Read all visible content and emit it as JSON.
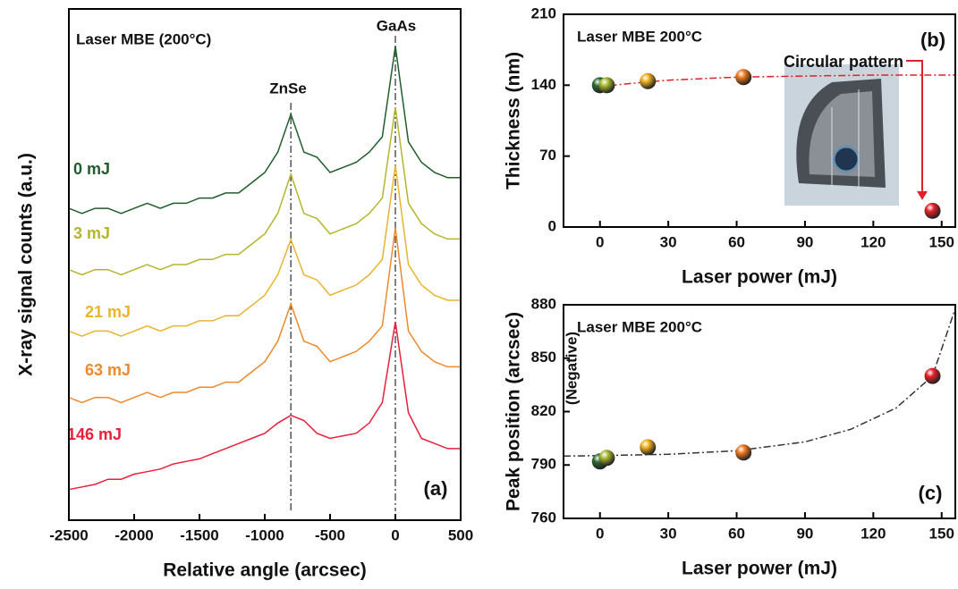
{
  "chart_data": [
    {
      "type": "line",
      "x_label": "Relative angle (arcsec)",
      "y_label": "X-ray signal counts (a.u.)",
      "note": "Laser MBE (200°C)",
      "panel_label": "(a)",
      "peak_labels": [
        "ZnSe",
        "GaAs"
      ],
      "reference_lines": [
        -800,
        0
      ],
      "xlim": [
        -2500,
        500
      ],
      "ylim": [
        0,
        100
      ],
      "xticks": [
        -2500,
        -2000,
        -1500,
        -1000,
        -500,
        0,
        500
      ],
      "x": [
        -2500,
        -2400,
        -2300,
        -2200,
        -2100,
        -2000,
        -1900,
        -1800,
        -1700,
        -1600,
        -1500,
        -1400,
        -1300,
        -1200,
        -1100,
        -1000,
        -900,
        -800,
        -700,
        -600,
        -500,
        -400,
        -300,
        -200,
        -100,
        0,
        100,
        200,
        300,
        400,
        500
      ],
      "series": [
        {
          "name": "0 mJ",
          "color": "#1f5e2c",
          "values": [
            61,
            60,
            61,
            61,
            60,
            61,
            62,
            61,
            62,
            62,
            63,
            63,
            64,
            64,
            66,
            68,
            72,
            79.4,
            72,
            71,
            68,
            69,
            70,
            72,
            75,
            92.7,
            74,
            70,
            68,
            67,
            67
          ]
        },
        {
          "name": "3 mJ",
          "color": "#b5b52e",
          "values": [
            49,
            48,
            49,
            49,
            48,
            49,
            50,
            49,
            50,
            50,
            51,
            51,
            52,
            52,
            54,
            56,
            60,
            67.7,
            60,
            59,
            56,
            57,
            58,
            60,
            63,
            80.8,
            62,
            58,
            56,
            55,
            55
          ]
        },
        {
          "name": "21 mJ",
          "color": "#e9b42e",
          "values": [
            37,
            36,
            37,
            37,
            36,
            37,
            38,
            37,
            38,
            38,
            39,
            39,
            40,
            40,
            42,
            44,
            48,
            54.9,
            48,
            47,
            44,
            45,
            46,
            48,
            51,
            69.4,
            50,
            46,
            44,
            43,
            43
          ]
        },
        {
          "name": "63 mJ",
          "color": "#ec8a2c",
          "values": [
            24,
            23,
            24,
            24,
            23,
            24,
            25,
            24,
            25,
            25,
            26,
            26,
            27,
            27,
            29,
            31,
            35,
            42.3,
            35,
            34,
            31,
            32,
            33,
            35,
            38,
            57.2,
            37,
            33,
            31,
            30,
            30
          ]
        },
        {
          "name": "146 mJ",
          "color": "#e8203a",
          "values": [
            6,
            6.5,
            7,
            8,
            8,
            9,
            9.5,
            10,
            11,
            11.5,
            12,
            13,
            14,
            15,
            16,
            17,
            19,
            20.5,
            19.5,
            17,
            16,
            16.5,
            17,
            19,
            23,
            38.8,
            21,
            16,
            15,
            14,
            14
          ]
        }
      ]
    },
    {
      "type": "scatter",
      "x_label": "Laser power (mJ)",
      "y_label": "Thickness (nm)",
      "note": "Laser MBE 200°C",
      "panel_label": "(b)",
      "annotation": "Circular pattern",
      "xlim": [
        -16,
        156
      ],
      "ylim": [
        0,
        210
      ],
      "xticks": [
        0,
        30,
        60,
        90,
        120,
        150
      ],
      "yticks": [
        0,
        70,
        140,
        210
      ],
      "x": [
        0,
        3,
        21,
        63,
        146
      ],
      "values": [
        140,
        140,
        144,
        148,
        16
      ],
      "colors": [
        "#2a6a34",
        "#a8b830",
        "#f0b020",
        "#f07a20",
        "#e8202a"
      ],
      "fit": {
        "color": "#e0202a",
        "x": [
          -2,
          10,
          30,
          60,
          90,
          120,
          156
        ],
        "values": [
          138,
          141,
          145,
          148,
          149,
          150,
          150
        ]
      }
    },
    {
      "type": "scatter",
      "x_label": "Laser power (mJ)",
      "y_label": "Peak position (arcsec)",
      "note": "Laser MBE 200°C",
      "panel_label": "(c)",
      "annotation": "(Negative)",
      "xlim": [
        -16,
        156
      ],
      "ylim": [
        760,
        880
      ],
      "xticks": [
        0,
        30,
        60,
        90,
        120,
        150
      ],
      "yticks": [
        760,
        790,
        820,
        850,
        880
      ],
      "x": [
        0,
        3,
        21,
        63,
        146
      ],
      "values": [
        792,
        794,
        800,
        797,
        840
      ],
      "colors": [
        "#2a6a34",
        "#a8b830",
        "#f0b020",
        "#f07a20",
        "#e8202a"
      ],
      "fit": {
        "color": "#333333",
        "x": [
          -16,
          0,
          30,
          60,
          90,
          110,
          130,
          146,
          156
        ],
        "values": [
          795,
          795.3,
          796,
          798,
          803,
          810,
          822,
          840,
          878
        ]
      }
    }
  ]
}
